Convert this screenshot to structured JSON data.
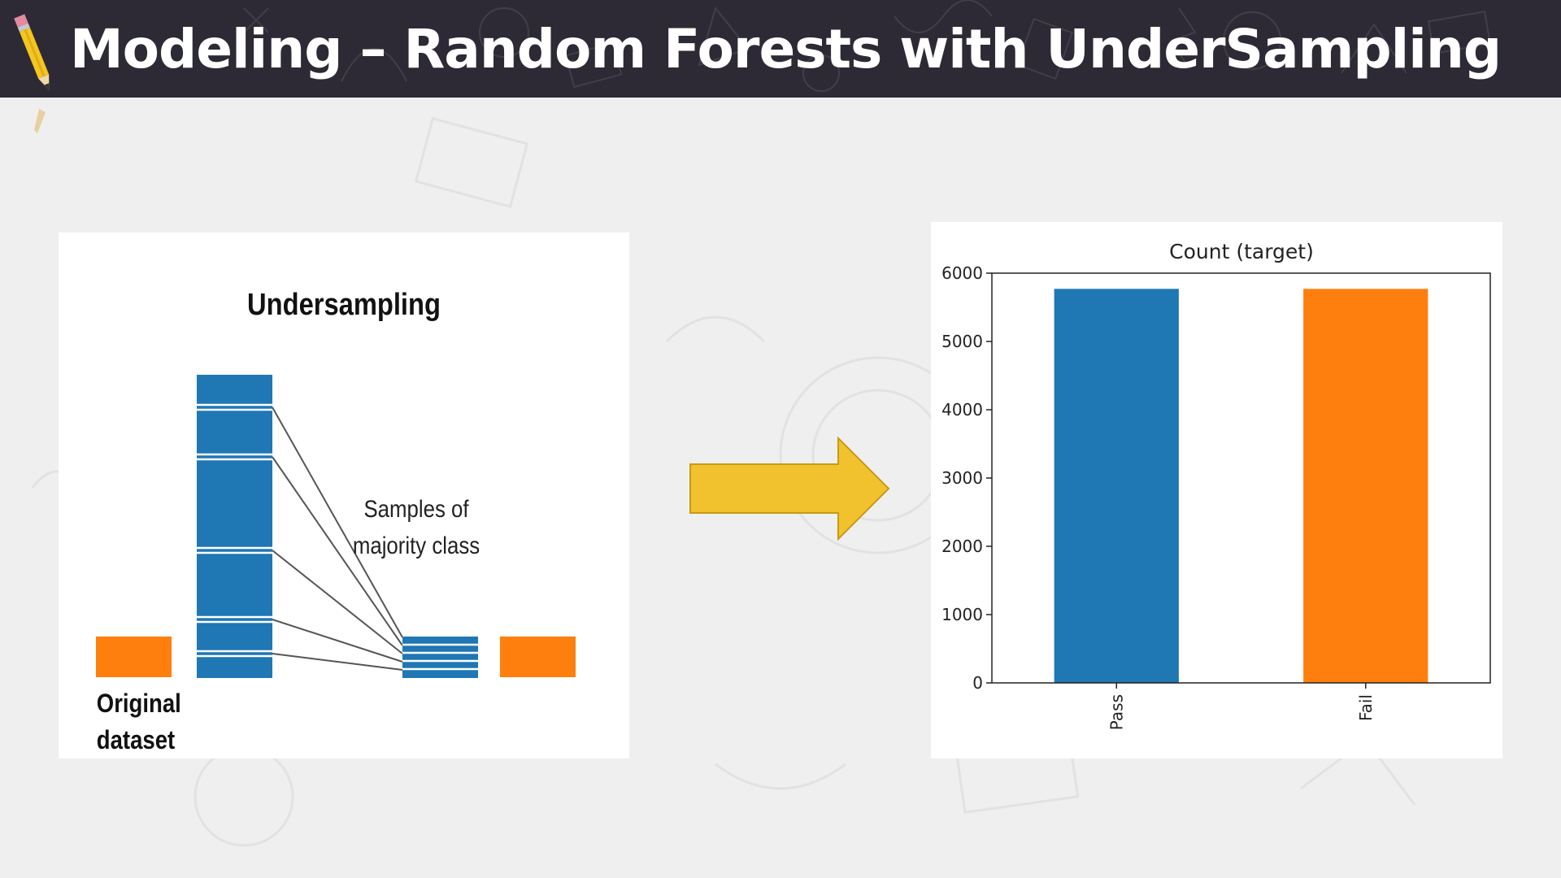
{
  "slide": {
    "title": "Modeling – Random Forests with UnderSampling"
  },
  "diagram": {
    "title": "Undersampling",
    "samples_label_line1": "Samples of",
    "samples_label_line2": "majority class",
    "original_label": "Original dataset",
    "colors": {
      "majority": "#1f77b4",
      "minority": "#ff7f0e"
    }
  },
  "arrow": {
    "color": "#f2c12e",
    "icon": "right-arrow-icon"
  },
  "chart_data": {
    "type": "bar",
    "title": "Count (target)",
    "categories": [
      "Pass",
      "Fail"
    ],
    "values": [
      5770,
      5770
    ],
    "colors": [
      "#1f77b4",
      "#ff7f0e"
    ],
    "xlabel": "",
    "ylabel": "",
    "ylim": [
      0,
      6000
    ],
    "yticks": [
      0,
      1000,
      2000,
      3000,
      4000,
      5000,
      6000
    ],
    "grid": false
  }
}
